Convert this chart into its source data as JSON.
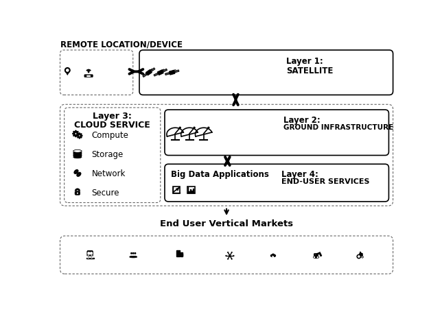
{
  "title": "REMOTE LOCATION/DEVICE",
  "bg_color": "#ffffff",
  "layer1_title1": "Layer 1:",
  "layer1_title2": "SATELLITE",
  "layer2_title1": "Layer 2:",
  "layer2_title2": "GROUND INFRASTRUCTURE",
  "layer3_title1": "Layer 3:",
  "layer3_title2": "CLOUD SERVICE",
  "layer4_title1": "Layer 4:",
  "layer4_title2": "END-USER SERVICES",
  "bigdata_title": "Big Data Applications",
  "enduser_title": "End User Vertical Markets",
  "cloud_items": [
    "Compute",
    "Storage",
    "Network",
    "Secure"
  ],
  "figsize": [
    6.44,
    4.56
  ],
  "dpi": 100
}
